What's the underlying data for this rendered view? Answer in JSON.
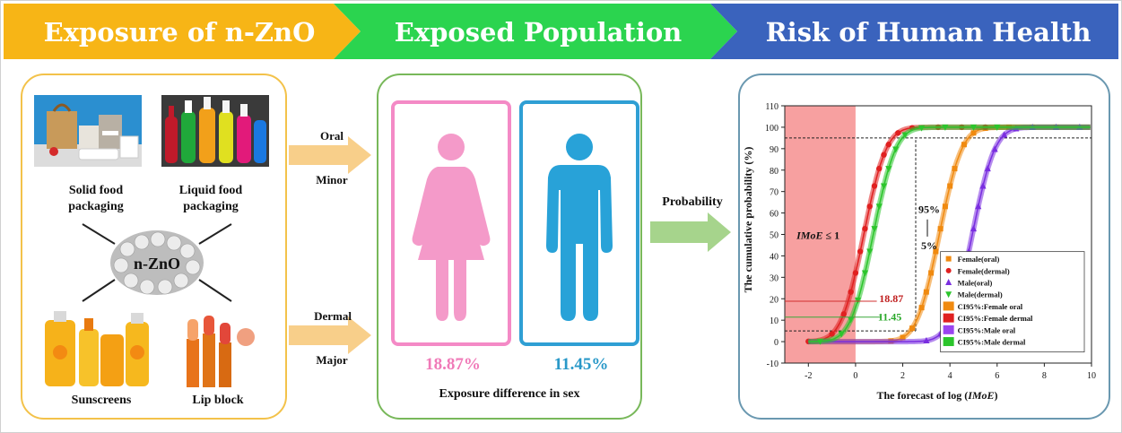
{
  "banners": {
    "exposure": "Exposure of n-ZnO",
    "population": "Exposed Population",
    "risk": "Risk of Human Health"
  },
  "colors": {
    "yellow": "#f7b516",
    "green": "#2bd44f",
    "blue": "#3a63bd"
  },
  "products": {
    "solid": "Solid food\npackaging",
    "liquid": "Liquid food\npackaging",
    "center": "n-ZnO",
    "sunscreens": "Sunscreens",
    "lipblock": "Lip block"
  },
  "routes": {
    "oral": "Oral",
    "minor": "Minor",
    "dermal": "Dermal",
    "major": "Major",
    "probability": "Probability"
  },
  "population": {
    "female_pct": "18.87%",
    "male_pct": "11.45%",
    "caption": "Exposure difference in sex"
  },
  "chart_data": {
    "type": "scatter",
    "xlabel": "The forecast of log (IMoE)",
    "ylabel": "The cumulative probability (%)",
    "xlim": [
      -3,
      10
    ],
    "ylim": [
      -10,
      110
    ],
    "xticks": [
      -2,
      0,
      2,
      4,
      6,
      8,
      10
    ],
    "yticks": [
      -10,
      0,
      10,
      20,
      30,
      40,
      50,
      60,
      70,
      80,
      90,
      100,
      110
    ],
    "region_label": "IMoE ≤ 1",
    "region": [
      -3,
      0
    ],
    "percentile_label_top": "95%",
    "percentile_label_bottom": "5%",
    "annotations": {
      "female": "18.87",
      "male": "11.45"
    },
    "series": [
      {
        "name": "Female(oral)",
        "marker": "square",
        "color": "#f08a10",
        "mu": 3.55,
        "sigma": 0.75,
        "x": [
          1.5,
          2.0,
          2.4,
          2.8,
          3.0,
          3.2,
          3.4,
          3.6,
          3.8,
          4.0,
          4.2,
          4.6,
          5.0,
          5.5,
          6.5,
          7.5,
          8.5
        ]
      },
      {
        "name": "Female(dermal)",
        "marker": "circle",
        "color": "#e02020",
        "mu": 0.35,
        "sigma": 0.75,
        "x": [
          -2.0,
          -1.0,
          -0.5,
          -0.2,
          0.0,
          0.2,
          0.4,
          0.6,
          0.8,
          1.0,
          1.2,
          1.4,
          1.8,
          2.4,
          3.5,
          4.5,
          5.5
        ]
      },
      {
        "name": "Male(oral)",
        "marker": "triangle",
        "color": "#7a2ee0",
        "mu": 4.95,
        "sigma": 0.75,
        "x": [
          3.0,
          3.6,
          4.0,
          4.3,
          4.6,
          4.8,
          5.0,
          5.2,
          5.4,
          5.6,
          5.9,
          6.3,
          6.8,
          7.5,
          8.5,
          9.5
        ]
      },
      {
        "name": "Male(dermal)",
        "marker": "triangle-down",
        "color": "#2cc52c",
        "mu": 0.75,
        "sigma": 0.75,
        "x": [
          -1.5,
          -0.6,
          -0.2,
          0.1,
          0.4,
          0.6,
          0.8,
          1.0,
          1.2,
          1.4,
          1.7,
          2.1,
          2.8,
          3.8,
          5.0,
          6.0
        ]
      }
    ],
    "legend": [
      {
        "label": "Female(oral)",
        "type": "marker",
        "marker": "square",
        "color": "#f08a10"
      },
      {
        "label": "Female(dermal)",
        "type": "marker",
        "marker": "circle",
        "color": "#e02020"
      },
      {
        "label": "Male(oral)",
        "type": "marker",
        "marker": "triangle",
        "color": "#7a2ee0"
      },
      {
        "label": "Male(dermal)",
        "type": "marker",
        "marker": "triangle-down",
        "color": "#2cc52c"
      },
      {
        "label": "CI95%:Female oral",
        "type": "box",
        "color": "#f08a10"
      },
      {
        "label": "CI95%:Female dermal",
        "type": "box",
        "color": "#e02020"
      },
      {
        "label": "CI95%:Male oral",
        "type": "box",
        "color": "#9a45f0"
      },
      {
        "label": "CI95%:Male dermal",
        "type": "box",
        "color": "#2cc52c"
      }
    ],
    "legend_position": "lower-right",
    "grid": false
  }
}
